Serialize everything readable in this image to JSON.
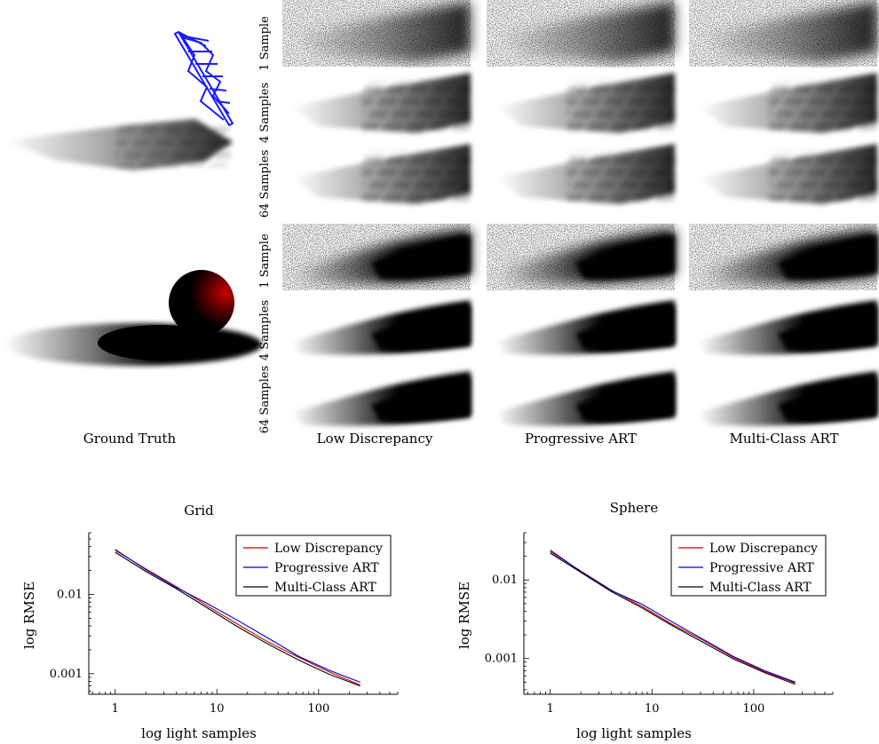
{
  "renders": {
    "row_labels": [
      "1 Sample",
      "4 Samples",
      "64 Samples",
      "1 Sample",
      "4 Samples",
      "64 Samples"
    ],
    "column_labels": [
      "Ground Truth",
      "Low Discrepancy",
      "Progressive ART",
      "Multi-Class ART"
    ]
  },
  "chart_data": [
    {
      "type": "line",
      "title": "Grid",
      "xlabel": "log light samples",
      "ylabel": "log RMSE",
      "xscale": "log",
      "yscale": "log",
      "xlim": [
        0.55,
        600
      ],
      "ylim": [
        0.00055,
        0.06
      ],
      "xticks": [
        1,
        10,
        100
      ],
      "xtick_labels": [
        "1",
        "10",
        "100"
      ],
      "yticks": [
        0.001,
        0.01
      ],
      "ytick_labels": [
        "0.001",
        "0.01"
      ],
      "grid": false,
      "legend": "top-right",
      "series": [
        {
          "name": "Low Discrepancy",
          "color": "#cc0000",
          "x": [
            1,
            2,
            4,
            8,
            16,
            32,
            64,
            128,
            256
          ],
          "y": [
            0.036,
            0.021,
            0.0125,
            0.0072,
            0.0042,
            0.0025,
            0.0016,
            0.00105,
            0.00072
          ]
        },
        {
          "name": "Progressive ART",
          "color": "#0000cc",
          "x": [
            1,
            2,
            4,
            8,
            16,
            32,
            64,
            128,
            256
          ],
          "y": [
            0.037,
            0.0205,
            0.0122,
            0.0077,
            0.0047,
            0.0028,
            0.00165,
            0.0011,
            0.00078
          ]
        },
        {
          "name": "Multi-Class ART",
          "color": "#000000",
          "x": [
            1,
            2,
            4,
            8,
            16,
            32,
            64,
            128,
            256
          ],
          "y": [
            0.034,
            0.0195,
            0.0118,
            0.0068,
            0.0039,
            0.00235,
            0.00148,
            0.00098,
            0.0007
          ]
        }
      ]
    },
    {
      "type": "line",
      "title": "Sphere",
      "xlabel": "log light samples",
      "ylabel": "log RMSE",
      "xscale": "log",
      "yscale": "log",
      "xlim": [
        0.55,
        600
      ],
      "ylim": [
        0.00035,
        0.04
      ],
      "xticks": [
        1,
        10,
        100
      ],
      "xtick_labels": [
        "1",
        "10",
        "100"
      ],
      "yticks": [
        0.001,
        0.01
      ],
      "ytick_labels": [
        "0.001",
        "0.01"
      ],
      "grid": false,
      "legend": "top-right",
      "series": [
        {
          "name": "Low Discrepancy",
          "color": "#cc0000",
          "x": [
            1,
            2,
            4,
            8,
            16,
            32,
            64,
            128,
            256
          ],
          "y": [
            0.023,
            0.013,
            0.0074,
            0.0046,
            0.0027,
            0.0017,
            0.00102,
            0.00068,
            0.00049
          ]
        },
        {
          "name": "Progressive ART",
          "color": "#0000cc",
          "x": [
            1,
            2,
            4,
            8,
            16,
            32,
            64,
            128,
            256
          ],
          "y": [
            0.024,
            0.0128,
            0.0073,
            0.0049,
            0.0029,
            0.00175,
            0.00105,
            0.0007,
            0.0005
          ]
        },
        {
          "name": "Multi-Class ART",
          "color": "#000000",
          "x": [
            1,
            2,
            4,
            8,
            16,
            32,
            64,
            128,
            256
          ],
          "y": [
            0.022,
            0.0125,
            0.0071,
            0.0044,
            0.0026,
            0.0016,
            0.00098,
            0.00066,
            0.00047
          ]
        }
      ]
    }
  ]
}
